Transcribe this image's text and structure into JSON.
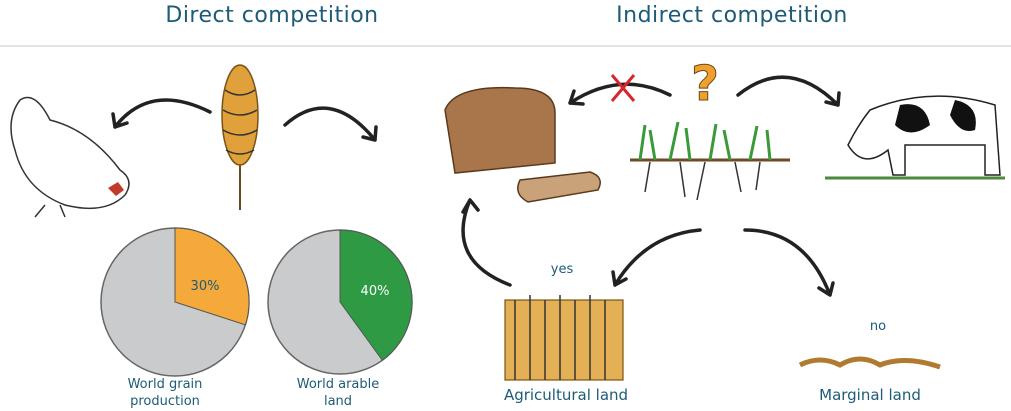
{
  "header": {
    "left_title": "Direct competition",
    "right_title": "Indirect competition"
  },
  "direct": {
    "shares": [
      {
        "label": "30%",
        "value": 30,
        "color": "#f4a93a",
        "caption": [
          "World grain",
          "production"
        ]
      },
      {
        "label": "40%",
        "value": 40,
        "color": "#2e9a44",
        "caption": [
          "World arable",
          "land"
        ]
      }
    ]
  },
  "indirect": {
    "branches": [
      {
        "answer": "yes",
        "label": "Agricultural land"
      },
      {
        "answer": "no",
        "label": "Marginal land"
      }
    ]
  }
}
